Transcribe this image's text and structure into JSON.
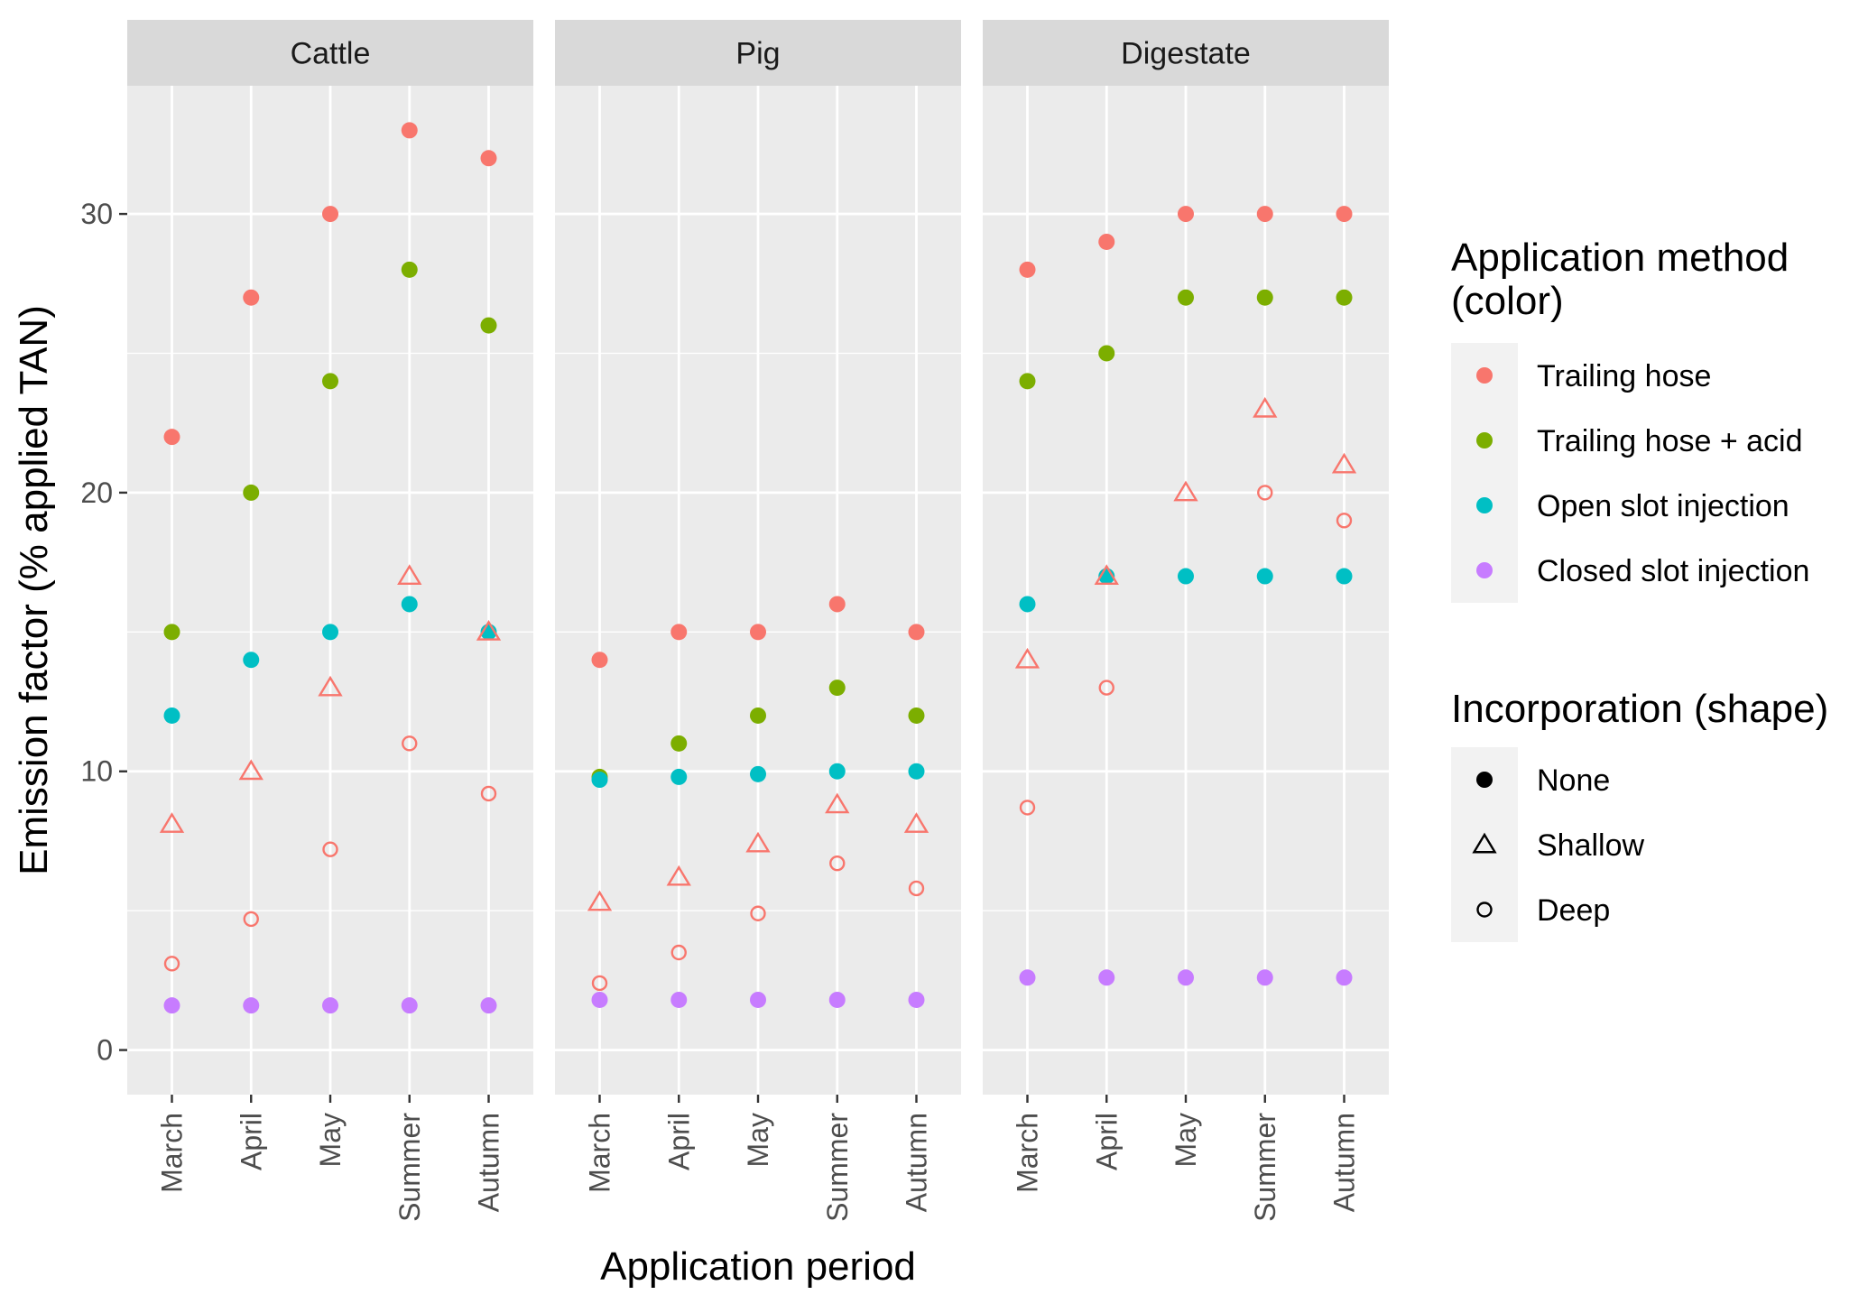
{
  "chart_data": {
    "type": "scatter",
    "facets": [
      "Cattle",
      "Pig",
      "Digestate"
    ],
    "categories": [
      "March",
      "April",
      "May",
      "Summer",
      "Autumn"
    ],
    "xlabel": "Application period",
    "ylabel": "Emission factor (% applied TAN)",
    "ylim": [
      -1.6,
      34.6
    ],
    "yticks": [
      0,
      10,
      20,
      30
    ],
    "grid": true,
    "legend_position": "right",
    "legends": {
      "color": {
        "title": "Application method\n(color)",
        "items": [
          {
            "label": "Trailing hose",
            "color": "#F8766D"
          },
          {
            "label": "Trailing hose + acid",
            "color": "#7CAE00"
          },
          {
            "label": "Open slot injection",
            "color": "#00BFC4"
          },
          {
            "label": "Closed slot injection",
            "color": "#C77CFF"
          }
        ]
      },
      "shape": {
        "title": "Incorporation (shape)",
        "items": [
          {
            "label": "None",
            "shape": "filled-circle"
          },
          {
            "label": "Shallow",
            "shape": "open-triangle"
          },
          {
            "label": "Deep",
            "shape": "open-circle"
          }
        ]
      }
    },
    "series": [
      {
        "facet": "Cattle",
        "method": "Trailing hose",
        "incorporation": "None",
        "values": [
          22,
          27,
          30,
          33,
          32
        ]
      },
      {
        "facet": "Cattle",
        "method": "Trailing hose + acid",
        "incorporation": "None",
        "values": [
          15,
          20,
          24,
          28,
          26
        ]
      },
      {
        "facet": "Cattle",
        "method": "Open slot injection",
        "incorporation": "None",
        "values": [
          12,
          14,
          15,
          16,
          15
        ]
      },
      {
        "facet": "Cattle",
        "method": "Closed slot injection",
        "incorporation": "None",
        "values": [
          1.6,
          1.6,
          1.6,
          1.6,
          1.6
        ]
      },
      {
        "facet": "Cattle",
        "method": "Trailing hose",
        "incorporation": "Shallow",
        "values": [
          8.1,
          10,
          13,
          17,
          15
        ]
      },
      {
        "facet": "Cattle",
        "method": "Trailing hose",
        "incorporation": "Deep",
        "values": [
          3.1,
          4.7,
          7.2,
          11,
          9.2
        ]
      },
      {
        "facet": "Pig",
        "method": "Trailing hose",
        "incorporation": "None",
        "values": [
          14,
          15,
          15,
          16,
          15
        ]
      },
      {
        "facet": "Pig",
        "method": "Trailing hose + acid",
        "incorporation": "None",
        "values": [
          9.8,
          11,
          12,
          13,
          12
        ]
      },
      {
        "facet": "Pig",
        "method": "Open slot injection",
        "incorporation": "None",
        "values": [
          9.7,
          9.8,
          9.9,
          10,
          10
        ]
      },
      {
        "facet": "Pig",
        "method": "Closed slot injection",
        "incorporation": "None",
        "values": [
          1.8,
          1.8,
          1.8,
          1.8,
          1.8
        ]
      },
      {
        "facet": "Pig",
        "method": "Trailing hose",
        "incorporation": "Shallow",
        "values": [
          5.3,
          6.2,
          7.4,
          8.8,
          8.1
        ]
      },
      {
        "facet": "Pig",
        "method": "Trailing hose",
        "incorporation": "Deep",
        "values": [
          2.4,
          3.5,
          4.9,
          6.7,
          5.8
        ]
      },
      {
        "facet": "Digestate",
        "method": "Trailing hose",
        "incorporation": "None",
        "values": [
          28,
          29,
          30,
          30,
          30
        ]
      },
      {
        "facet": "Digestate",
        "method": "Trailing hose + acid",
        "incorporation": "None",
        "values": [
          24,
          25,
          27,
          27,
          27
        ]
      },
      {
        "facet": "Digestate",
        "method": "Open slot injection",
        "incorporation": "None",
        "values": [
          16,
          17,
          17,
          17,
          17
        ]
      },
      {
        "facet": "Digestate",
        "method": "Closed slot injection",
        "incorporation": "None",
        "values": [
          2.6,
          2.6,
          2.6,
          2.6,
          2.6
        ]
      },
      {
        "facet": "Digestate",
        "method": "Trailing hose",
        "incorporation": "Shallow",
        "values": [
          14,
          17,
          20,
          23,
          21
        ]
      },
      {
        "facet": "Digestate",
        "method": "Trailing hose",
        "incorporation": "Deep",
        "values": [
          8.7,
          13,
          null,
          20,
          19
        ]
      }
    ]
  }
}
